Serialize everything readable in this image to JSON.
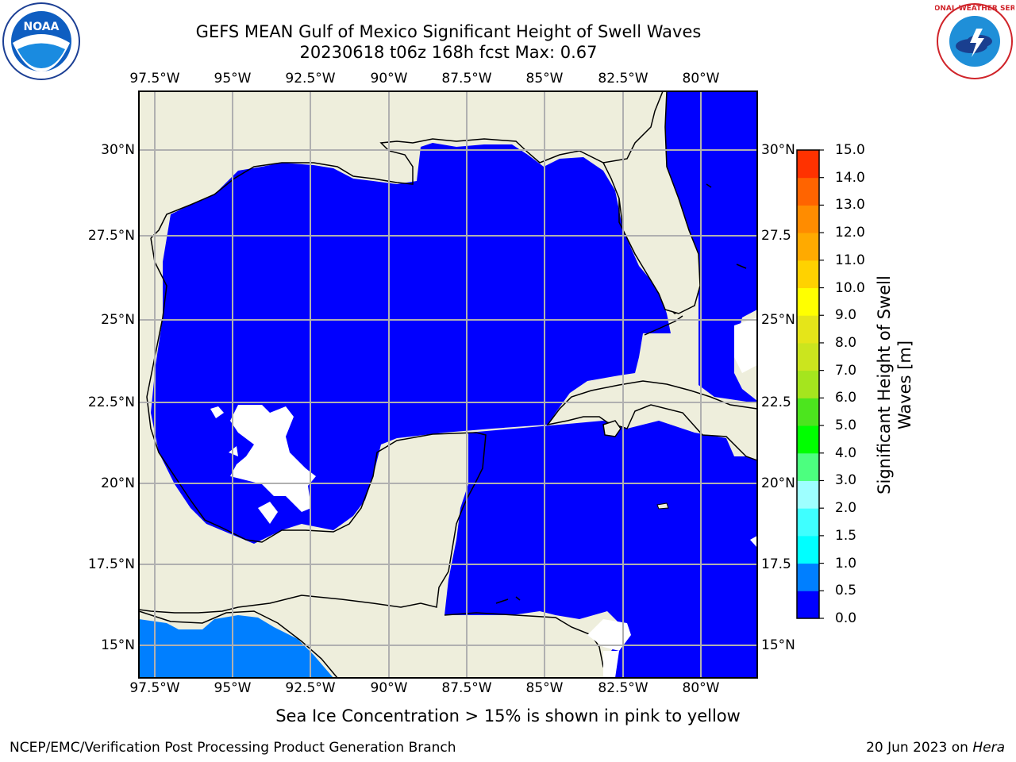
{
  "title": {
    "line1": "GEFS MEAN Gulf of Mexico Significant Height of Swell Waves",
    "line2": "20230618 t06z 168h fcst   Max: 0.67"
  },
  "logos": {
    "left": {
      "icon": "noaa-logo",
      "text": "NOAA"
    },
    "right": {
      "icon": "national-weather-service-logo",
      "text": "NATIONAL WEATHER SERVICE"
    }
  },
  "map": {
    "lon_ticks": [
      "97.5°W",
      "95°W",
      "92.5°W",
      "90°W",
      "87.5°W",
      "85°W",
      "82.5°W",
      "80°W"
    ],
    "lat_ticks": [
      "30°N",
      "27.5°N",
      "25°N",
      "22.5°N",
      "20°N",
      "17.5°N",
      "15°N"
    ],
    "lat_ticks_right": [
      "30°N",
      "27.5",
      "25°N",
      "22.5",
      "20°N",
      "17.5",
      "15°N"
    ],
    "colors": {
      "land": "#eeeedc",
      "water_0_0.5": "#0000ff",
      "water_0.5_1.0": "#007fff",
      "missing": "#ffffff",
      "grid": "#b0b0b0"
    }
  },
  "colorbar": {
    "title": "Significant Height of Swell Waves [m]",
    "title_line1": "Significant Height of Swell",
    "title_line2": "Waves [m]",
    "labels": [
      "15.0",
      "14.0",
      "13.0",
      "12.0",
      "11.0",
      "10.0",
      "9.0",
      "8.0",
      "7.0",
      "6.0",
      "5.0",
      "4.0",
      "3.0",
      "2.0",
      "1.5",
      "1.0",
      "0.5",
      "0.0"
    ],
    "colors": [
      "#0000ff",
      "#007fff",
      "#00ffff",
      "#3fffff",
      "#9effff",
      "#4cff7f",
      "#00ff00",
      "#4ce51e",
      "#a5e51e",
      "#cbe51e",
      "#e5e519",
      "#ffff00",
      "#ffd200",
      "#ffaa00",
      "#ff8c00",
      "#ff6400",
      "#ff3200",
      "#ff0000"
    ]
  },
  "note": "Sea Ice Concentration > 15% is shown in pink to yellow",
  "footer": {
    "left": "NCEP/EMC/Verification Post Processing Product Generation Branch",
    "right_prefix": "20 Jun 2023 on ",
    "right_host": "Hera"
  }
}
